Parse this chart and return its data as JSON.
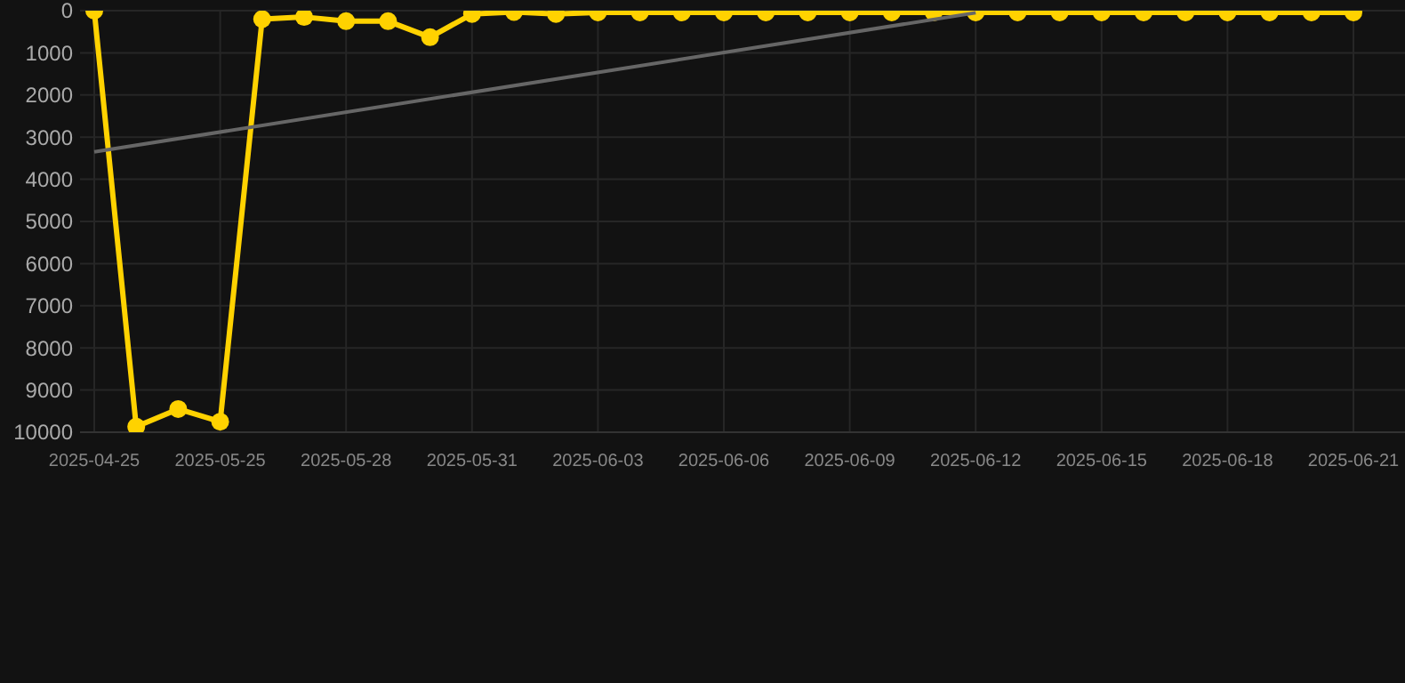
{
  "chart_data": {
    "type": "line",
    "categories": [
      "2025-04-25",
      null,
      null,
      "2025-05-25",
      null,
      null,
      "2025-05-28",
      null,
      null,
      "2025-05-31",
      null,
      null,
      "2025-06-03",
      null,
      null,
      "2025-06-06",
      null,
      null,
      "2025-06-09",
      null,
      null,
      "2025-06-12",
      null,
      null,
      "2025-06-15",
      null,
      null,
      "2025-06-18",
      null,
      null,
      "2025-06-21"
    ],
    "series": [
      {
        "color": "#ffd200",
        "marker": "circle",
        "values": [
          0,
          9870,
          9450,
          9750,
          200,
          150,
          250,
          250,
          630,
          80,
          30,
          80,
          40,
          40,
          40,
          40,
          40,
          40,
          40,
          40,
          40,
          40,
          40,
          40,
          40,
          40,
          40,
          40,
          40,
          40,
          40
        ]
      },
      {
        "color": "#666666",
        "marker": "none",
        "values": [
          3350,
          null,
          null,
          null,
          null,
          null,
          null,
          null,
          null,
          null,
          null,
          null,
          null,
          null,
          null,
          null,
          null,
          null,
          null,
          null,
          null,
          50,
          null,
          null,
          null,
          null,
          null,
          null,
          null,
          null,
          null
        ]
      }
    ],
    "ylim": [
      10000,
      0
    ],
    "yticks": [
      0,
      1000,
      2000,
      3000,
      4000,
      5000,
      6000,
      7000,
      8000,
      9000,
      10000
    ],
    "grid": true
  }
}
